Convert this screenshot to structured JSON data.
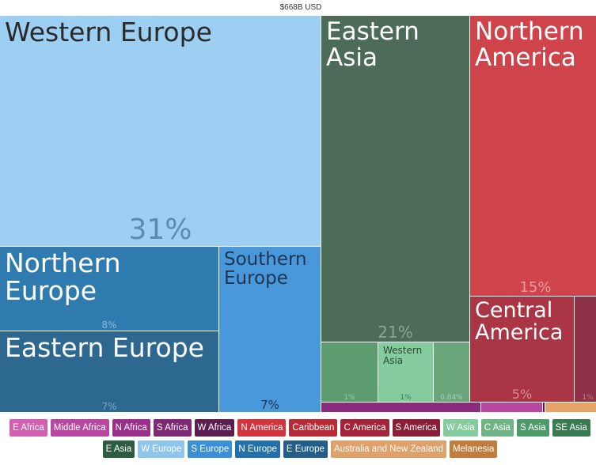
{
  "header": {
    "total_label": "$668B USD"
  },
  "chart_data": {
    "type": "treemap",
    "total": "$668B USD",
    "tiles": [
      {
        "name": "Western Europe",
        "percent_label": "31%",
        "value": 31,
        "color": "#9ccff2",
        "text_color": "#2a2a2a",
        "pct_color": "#5b8bb0"
      },
      {
        "name": "Northern Europe",
        "percent_label": "8%",
        "value": 8,
        "color": "#2f7bb0",
        "text_color": "#ffffff",
        "pct_color": "#8ab8d8"
      },
      {
        "name": "Eastern Europe",
        "percent_label": "7%",
        "value": 7,
        "color": "#2d6891",
        "text_color": "#ffffff",
        "pct_color": "#7fa6c2"
      },
      {
        "name": "Southern\nEurope",
        "percent_label": "7%",
        "value": 7,
        "color": "#4a98dc",
        "text_color": "#1f3550",
        "pct_color": "#1f3550"
      },
      {
        "name": "Eastern Asia",
        "percent_label": "21%",
        "value": 21,
        "color": "#4c6c57",
        "text_color": "#ffffff",
        "pct_color": "#8aa595"
      },
      {
        "name": "Northern\nAmerica",
        "percent_label": "15%",
        "value": 15,
        "color": "#cf434a",
        "text_color": "#ffffff",
        "pct_color": "#ef9ea1"
      },
      {
        "name": "Central\nAmerica",
        "percent_label": "5%",
        "value": 5,
        "color": "#a93545",
        "text_color": "#ffffff",
        "pct_color": "#d98a93"
      },
      {
        "name": "",
        "percent_label": "1%",
        "value": 1,
        "color": "#8e3347",
        "text_color": "#ffffff",
        "pct_color": "#c27d8b"
      },
      {
        "name": "",
        "percent_label": "1%",
        "value": 1,
        "color": "#5c9c6e",
        "text_color": "#ffffff",
        "pct_color": "#9cc9a8"
      },
      {
        "name": "Western\nAsia",
        "percent_label": "1%",
        "value": 1,
        "color": "#84cb9e",
        "text_color": "#2a4a36",
        "pct_color": "#3e7a54"
      },
      {
        "name": "",
        "percent_label": "0.84%",
        "value": 0.84,
        "color": "#6ba57c",
        "text_color": "#ffffff",
        "pct_color": "#a8d0b4"
      },
      {
        "name": "",
        "percent_label": "",
        "value": 0.5,
        "color": "#8a2b7c",
        "text_color": "#ffffff",
        "pct_color": "#ffffff"
      },
      {
        "name": "",
        "percent_label": "",
        "value": 0.3,
        "color": "#b8479f",
        "text_color": "#ffffff",
        "pct_color": "#ffffff"
      },
      {
        "name": "",
        "percent_label": "",
        "value": 0.1,
        "color": "#5b1e50",
        "text_color": "#ffffff",
        "pct_color": "#ffffff"
      },
      {
        "name": "",
        "percent_label": "",
        "value": 0.3,
        "color": "#e8a466",
        "text_color": "#ffffff",
        "pct_color": "#ffffff"
      }
    ],
    "legend": [
      {
        "label": "E Africa",
        "color": "#d25fb0"
      },
      {
        "label": "Middle Africa",
        "color": "#b8479f"
      },
      {
        "label": "N Africa",
        "color": "#9c2f8a"
      },
      {
        "label": "S Africa",
        "color": "#7e2a72"
      },
      {
        "label": "W Africa",
        "color": "#5b1e50"
      },
      {
        "label": "N America",
        "color": "#d0343c"
      },
      {
        "label": "Caribbean",
        "color": "#b72b36"
      },
      {
        "label": "C America",
        "color": "#a1243a"
      },
      {
        "label": "S America",
        "color": "#8a1d37"
      },
      {
        "label": "W Asia",
        "color": "#84cb9e"
      },
      {
        "label": "C Asia",
        "color": "#6fb487"
      },
      {
        "label": "S Asia",
        "color": "#4f9a6a"
      },
      {
        "label": "SE Asia",
        "color": "#3a7a53"
      },
      {
        "label": "E Asia",
        "color": "#2e5c40"
      },
      {
        "label": "W Europe",
        "color": "#8ec5ec"
      },
      {
        "label": "S Europe",
        "color": "#3a8fd6"
      },
      {
        "label": "N Europe",
        "color": "#2470aa"
      },
      {
        "label": "E Europe",
        "color": "#245f8c"
      },
      {
        "label": "Australia and New Zealand",
        "color": "#e0a06a"
      },
      {
        "label": "Melanesia",
        "color": "#c27d3e"
      }
    ]
  }
}
